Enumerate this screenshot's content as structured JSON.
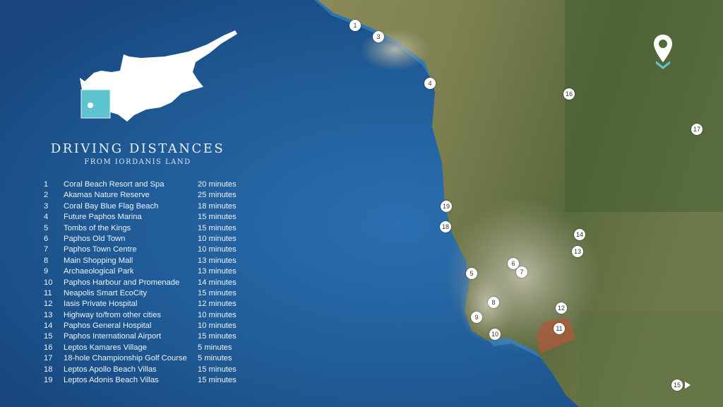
{
  "header": {
    "title": "DRIVING DISTANCES",
    "subtitle": "FROM IORDANIS LAND"
  },
  "colors": {
    "ocean": "#1b4c85",
    "highlight_box": "#5cc3cf",
    "text": "#eef3f9",
    "zone_11": "#b0583c"
  },
  "locations": [
    {
      "num": "1",
      "place": "Coral Beach Resort and Spa",
      "time": "20 minutes"
    },
    {
      "num": "2",
      "place": "Akamas Nature Reserve",
      "time": "25 minutes"
    },
    {
      "num": "3",
      "place": "Coral Bay Blue Flag Beach",
      "time": "18 minutes"
    },
    {
      "num": "4",
      "place": "Future Paphos Marina",
      "time": "15 minutes"
    },
    {
      "num": "5",
      "place": "Tombs of the Kings",
      "time": "15 minutes"
    },
    {
      "num": "6",
      "place": "Paphos Old Town",
      "time": "10 minutes"
    },
    {
      "num": "7",
      "place": "Paphos Town Centre",
      "time": "10 minutes"
    },
    {
      "num": "8",
      "place": "Main Shopping Mall",
      "time": "13 minutes"
    },
    {
      "num": "9",
      "place": "Archaeological Park",
      "time": "13 minutes"
    },
    {
      "num": "10",
      "place": "Paphos Harbour and Promenade",
      "time": "14 minutes"
    },
    {
      "num": "11",
      "place": "Neapolis Smart EcoCity",
      "time": "15 minutes"
    },
    {
      "num": "12",
      "place": "Iasis Private Hospital",
      "time": "12 minutes"
    },
    {
      "num": "13",
      "place": "Highway to/from other cities",
      "time": "10 minutes"
    },
    {
      "num": "14",
      "place": "Paphos General Hospital",
      "time": "10 minutes"
    },
    {
      "num": "15",
      "place": "Paphos International Airport",
      "time": "15 minutes"
    },
    {
      "num": "16",
      "place": "Leptos Kamares Village",
      "time": "5 minutes"
    },
    {
      "num": "17",
      "place": "18-hole Championship Golf Course",
      "time": "5 minutes"
    },
    {
      "num": "18",
      "place": "Leptos Apollo Beach Villas",
      "time": "15 minutes"
    },
    {
      "num": "19",
      "place": "Leptos Adonis Beach Villas",
      "time": "15 minutes"
    }
  ],
  "map_icons": {
    "origin_pin": "location-pin-icon",
    "airport_direction": "arrow-right-icon"
  }
}
